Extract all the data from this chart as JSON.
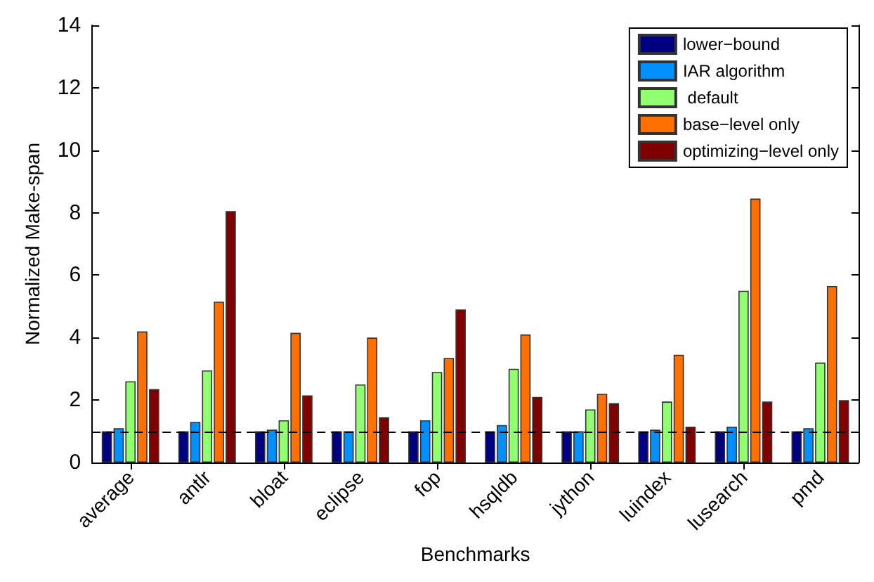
{
  "chart_data": {
    "type": "bar",
    "xlabel": "Benchmarks",
    "ylabel": "Normalized Make-span",
    "categories": [
      "average",
      "antlr",
      "bloat",
      "eclipse",
      "fop",
      "hsqldb",
      "jython",
      "luindex",
      "lusearch",
      "pmd"
    ],
    "series": [
      {
        "name": "lower−bound",
        "color": "#000080",
        "values": [
          1,
          1,
          1,
          1,
          1,
          1,
          1,
          1,
          1,
          1
        ]
      },
      {
        "name": "IAR algorithm",
        "color": "#0090ff",
        "values": [
          1.1,
          1.3,
          1.05,
          1.0,
          1.35,
          1.2,
          1.0,
          1.05,
          1.15,
          1.1
        ]
      },
      {
        "name": " default",
        "color": "#90ff70",
        "values": [
          2.6,
          2.95,
          1.35,
          2.5,
          2.9,
          3.0,
          1.7,
          1.95,
          5.5,
          3.2
        ]
      },
      {
        "name": "base−level only",
        "color": "#ff7000",
        "values": [
          4.2,
          5.15,
          4.15,
          4.0,
          3.35,
          4.1,
          2.2,
          3.45,
          8.45,
          5.65
        ]
      },
      {
        "name": "optimizing−level only",
        "color": "#800000",
        "values": [
          2.35,
          8.05,
          2.15,
          1.45,
          4.9,
          2.1,
          1.9,
          1.15,
          1.95,
          2.0
        ]
      }
    ],
    "ylim": [
      0,
      14
    ],
    "yticks": [
      0,
      2,
      4,
      6,
      8,
      10,
      12,
      14
    ],
    "ref_lines": [
      {
        "axis": "y",
        "value": 1,
        "color": "#000000",
        "line_style": "dashed"
      }
    ],
    "grid": false,
    "legend": "top right"
  }
}
